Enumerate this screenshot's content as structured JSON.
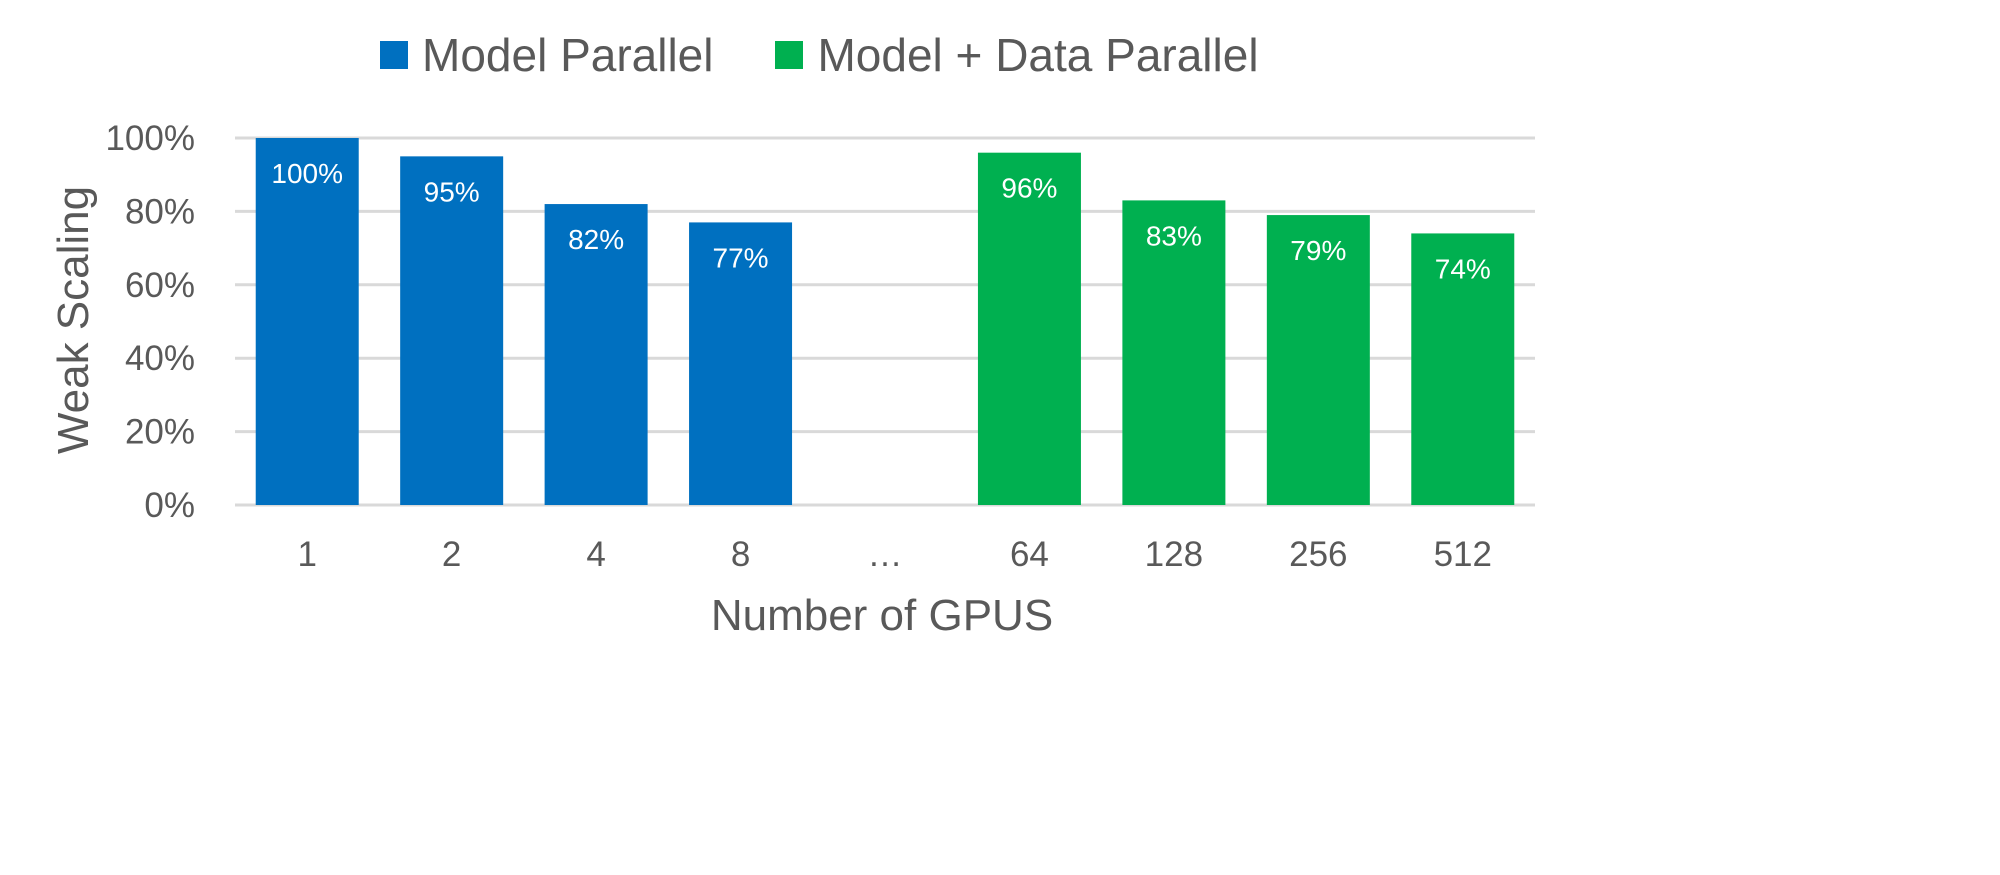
{
  "chart_data": {
    "type": "bar",
    "title": "",
    "xlabel": "Number of GPUS",
    "ylabel": "Weak Scaling",
    "ylim": [
      0,
      100
    ],
    "yticks": [
      "0%",
      "20%",
      "40%",
      "60%",
      "80%",
      "100%"
    ],
    "grid": true,
    "legend_position": "top",
    "categories": [
      "1",
      "2",
      "4",
      "8",
      "…",
      "64",
      "128",
      "256",
      "512"
    ],
    "series": [
      {
        "name": "Model Parallel",
        "color": "#0070C0",
        "values": [
          100,
          95,
          82,
          77,
          null,
          null,
          null,
          null,
          null
        ],
        "labels": [
          "100%",
          "95%",
          "82%",
          "77%",
          null,
          null,
          null,
          null,
          null
        ]
      },
      {
        "name": "Model + Data Parallel",
        "color": "#00B050",
        "values": [
          null,
          null,
          null,
          null,
          null,
          96,
          83,
          79,
          74
        ],
        "labels": [
          null,
          null,
          null,
          null,
          null,
          "96%",
          "83%",
          "79%",
          "74%"
        ]
      }
    ]
  }
}
